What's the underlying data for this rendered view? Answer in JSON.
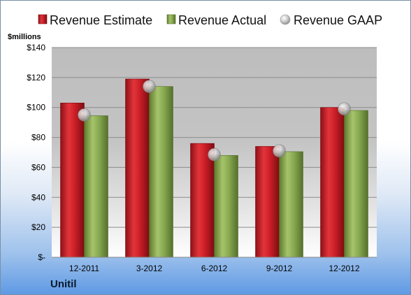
{
  "company": "Unitil",
  "chart_data": {
    "type": "bar",
    "ylabel": "$millions",
    "ylim": [
      0,
      140
    ],
    "yticks": [
      {
        "value": 0,
        "label": "$-"
      },
      {
        "value": 20,
        "label": "$20"
      },
      {
        "value": 40,
        "label": "$40"
      },
      {
        "value": 60,
        "label": "$60"
      },
      {
        "value": 80,
        "label": "$80"
      },
      {
        "value": 100,
        "label": "$100"
      },
      {
        "value": 120,
        "label": "$120"
      },
      {
        "value": 140,
        "label": "$140"
      }
    ],
    "categories": [
      "12-2011",
      "3-2012",
      "6-2012",
      "9-2012",
      "12-2012"
    ],
    "series": [
      {
        "name": "Revenue Estimate",
        "kind": "bar",
        "color": "#c8202a",
        "values": [
          103,
          119,
          76,
          74,
          100
        ]
      },
      {
        "name": "Revenue Actual",
        "kind": "bar",
        "color": "#86a750",
        "values": [
          94.5,
          114,
          68,
          70.5,
          98
        ]
      },
      {
        "name": "Revenue GAAP",
        "kind": "marker",
        "color": "#c0c0c0",
        "values": [
          95,
          114,
          68.5,
          71,
          99
        ]
      }
    ],
    "legend_position": "top",
    "grid": true
  }
}
